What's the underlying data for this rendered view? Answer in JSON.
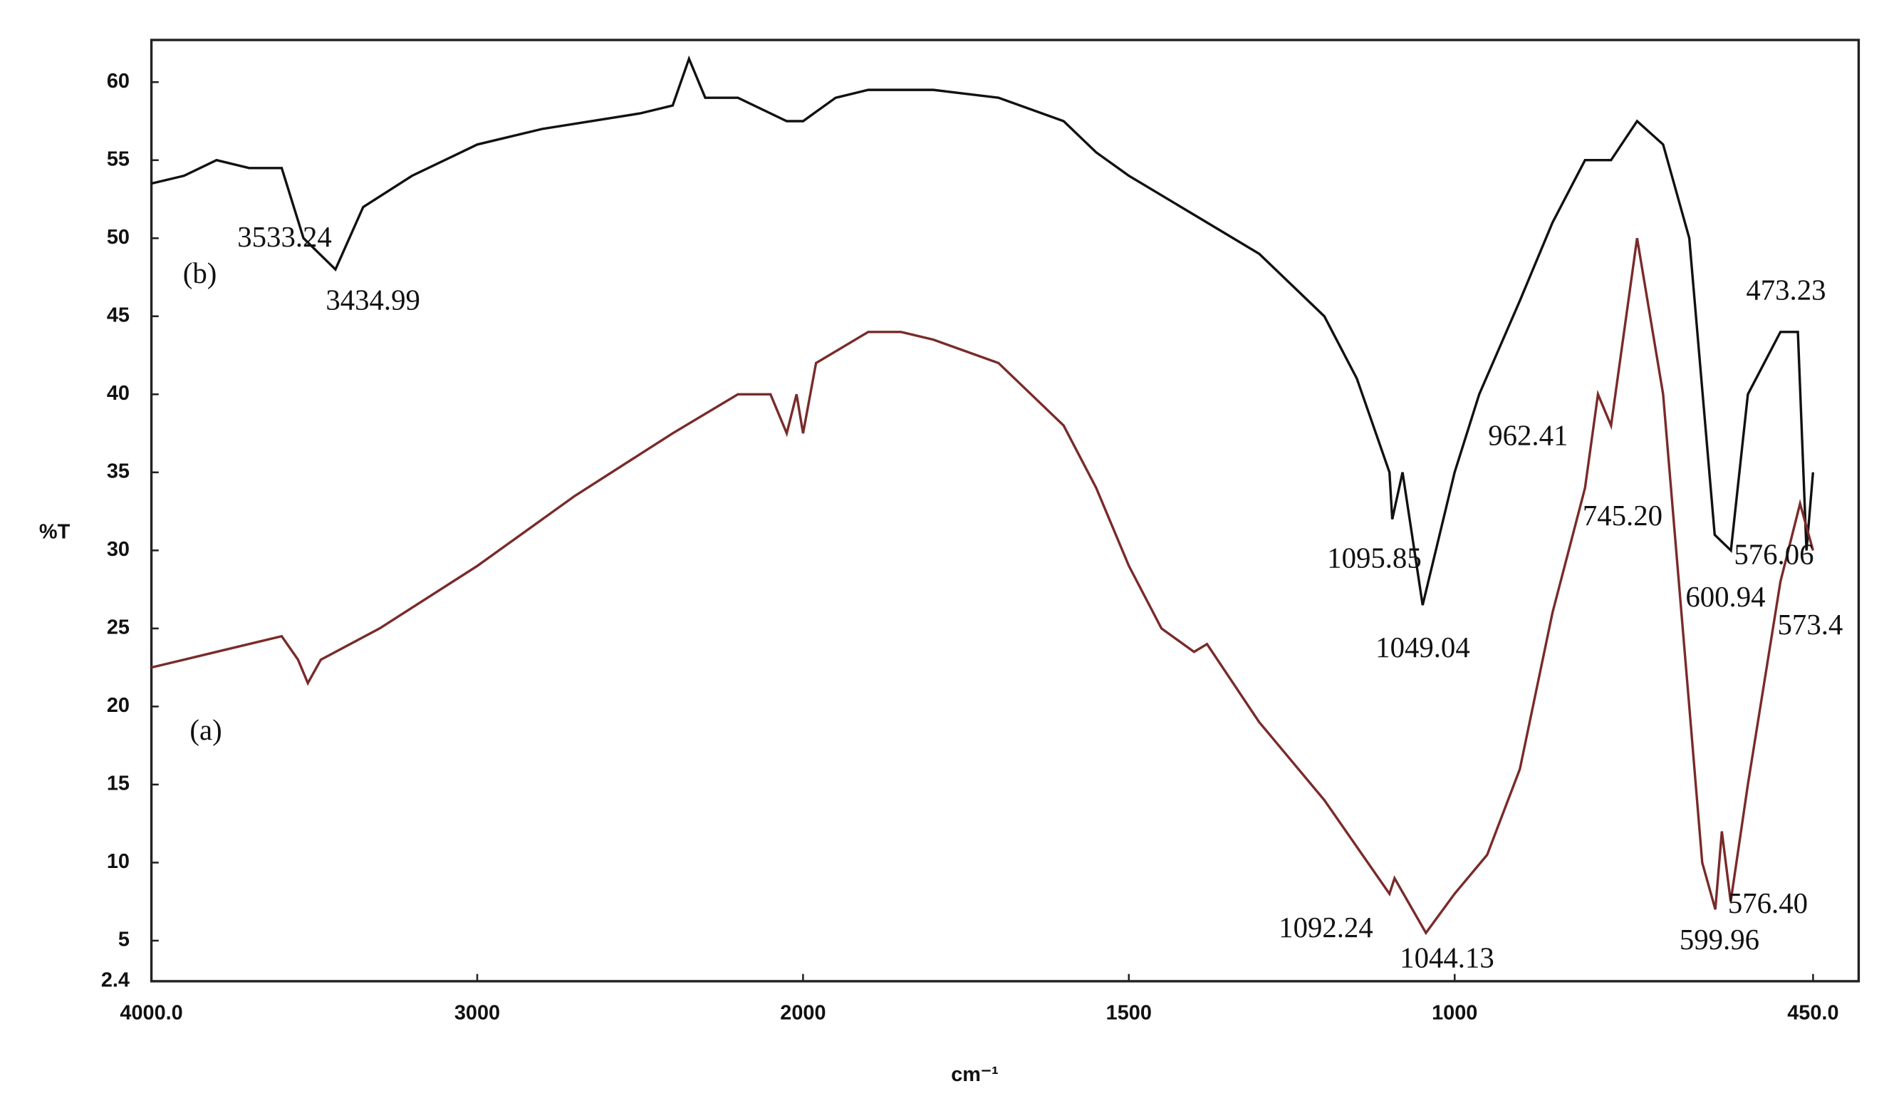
{
  "chart_data": {
    "type": "line",
    "xlabel": "cm⁻¹",
    "ylabel": "%T",
    "xlim": [
      4000,
      380
    ],
    "xscale": {
      "break": 2000,
      "factor_above": 0.5
    },
    "xticks": [
      {
        "value": 4000,
        "label": "4000.0"
      },
      3000,
      2000,
      1500,
      1000,
      {
        "value": 450,
        "label": "450.0"
      }
    ],
    "ylim": [
      2.4,
      62.7
    ],
    "yticks": [
      2.4,
      5,
      10,
      15,
      20,
      25,
      30,
      35,
      40,
      45,
      50,
      55,
      60
    ],
    "grid": false,
    "series": [
      {
        "name": "(b)",
        "color": "#111111",
        "x": [
          4000,
          3900,
          3800,
          3700,
          3600,
          3533.24,
          3434.99,
          3350,
          3200,
          3000,
          2800,
          2500,
          2400,
          2350,
          2300,
          2200,
          2100,
          2050,
          2000,
          1950,
          1900,
          1800,
          1700,
          1600,
          1550,
          1500,
          1400,
          1300,
          1200,
          1150,
          1100,
          1095.85,
          1080,
          1049.04,
          1000,
          962.41,
          900,
          850,
          800,
          760,
          720,
          680,
          640,
          600.94,
          576.06,
          550,
          500,
          473.23,
          460,
          450
        ],
        "values": [
          53.5,
          54,
          55,
          54.5,
          54.5,
          50,
          48,
          52,
          54,
          56,
          57,
          58,
          58.5,
          61.5,
          59,
          59,
          58,
          57.5,
          57.5,
          59,
          59.5,
          59.5,
          59,
          57.5,
          55.5,
          54,
          51.5,
          49,
          45,
          41,
          35,
          32,
          35,
          26.5,
          35,
          40,
          46,
          51,
          55,
          55,
          57.5,
          56,
          50,
          31,
          30,
          40,
          44,
          44,
          30,
          35
        ]
      },
      {
        "name": "(a)",
        "color": "#7a2a2a",
        "x": [
          4000,
          3800,
          3600,
          3550,
          3520,
          3480,
          3300,
          3000,
          2700,
          2400,
          2200,
          2100,
          2050,
          2020,
          2000,
          1980,
          1900,
          1850,
          1800,
          1700,
          1600,
          1550,
          1500,
          1450,
          1400,
          1380,
          1300,
          1200,
          1100,
          1092.24,
          1044.13,
          1000,
          950,
          900,
          850,
          800,
          780,
          760,
          720,
          680,
          640,
          620,
          599.96,
          590,
          576.4,
          550,
          500,
          470,
          450
        ],
        "values": [
          22.5,
          23.5,
          24.5,
          23,
          21.5,
          23,
          25,
          29,
          33.5,
          37.5,
          40,
          40,
          37.5,
          40,
          37.5,
          42,
          44,
          44,
          43.5,
          42,
          38,
          34,
          29,
          25,
          23.5,
          24,
          19,
          14,
          8,
          9,
          5.5,
          8,
          10.5,
          16,
          26,
          34,
          40,
          38,
          50,
          40,
          20,
          10,
          7,
          12,
          7.5,
          15,
          28,
          33,
          30
        ]
      }
    ],
    "annotations": [
      "3533.24",
      "3434.99",
      "1095.85",
      "1049.04",
      "962.41",
      "745.20",
      "473.23",
      "576.06",
      "600.94",
      "573.4",
      "1092.24",
      "1044.13",
      "599.96",
      "576.40"
    ]
  }
}
